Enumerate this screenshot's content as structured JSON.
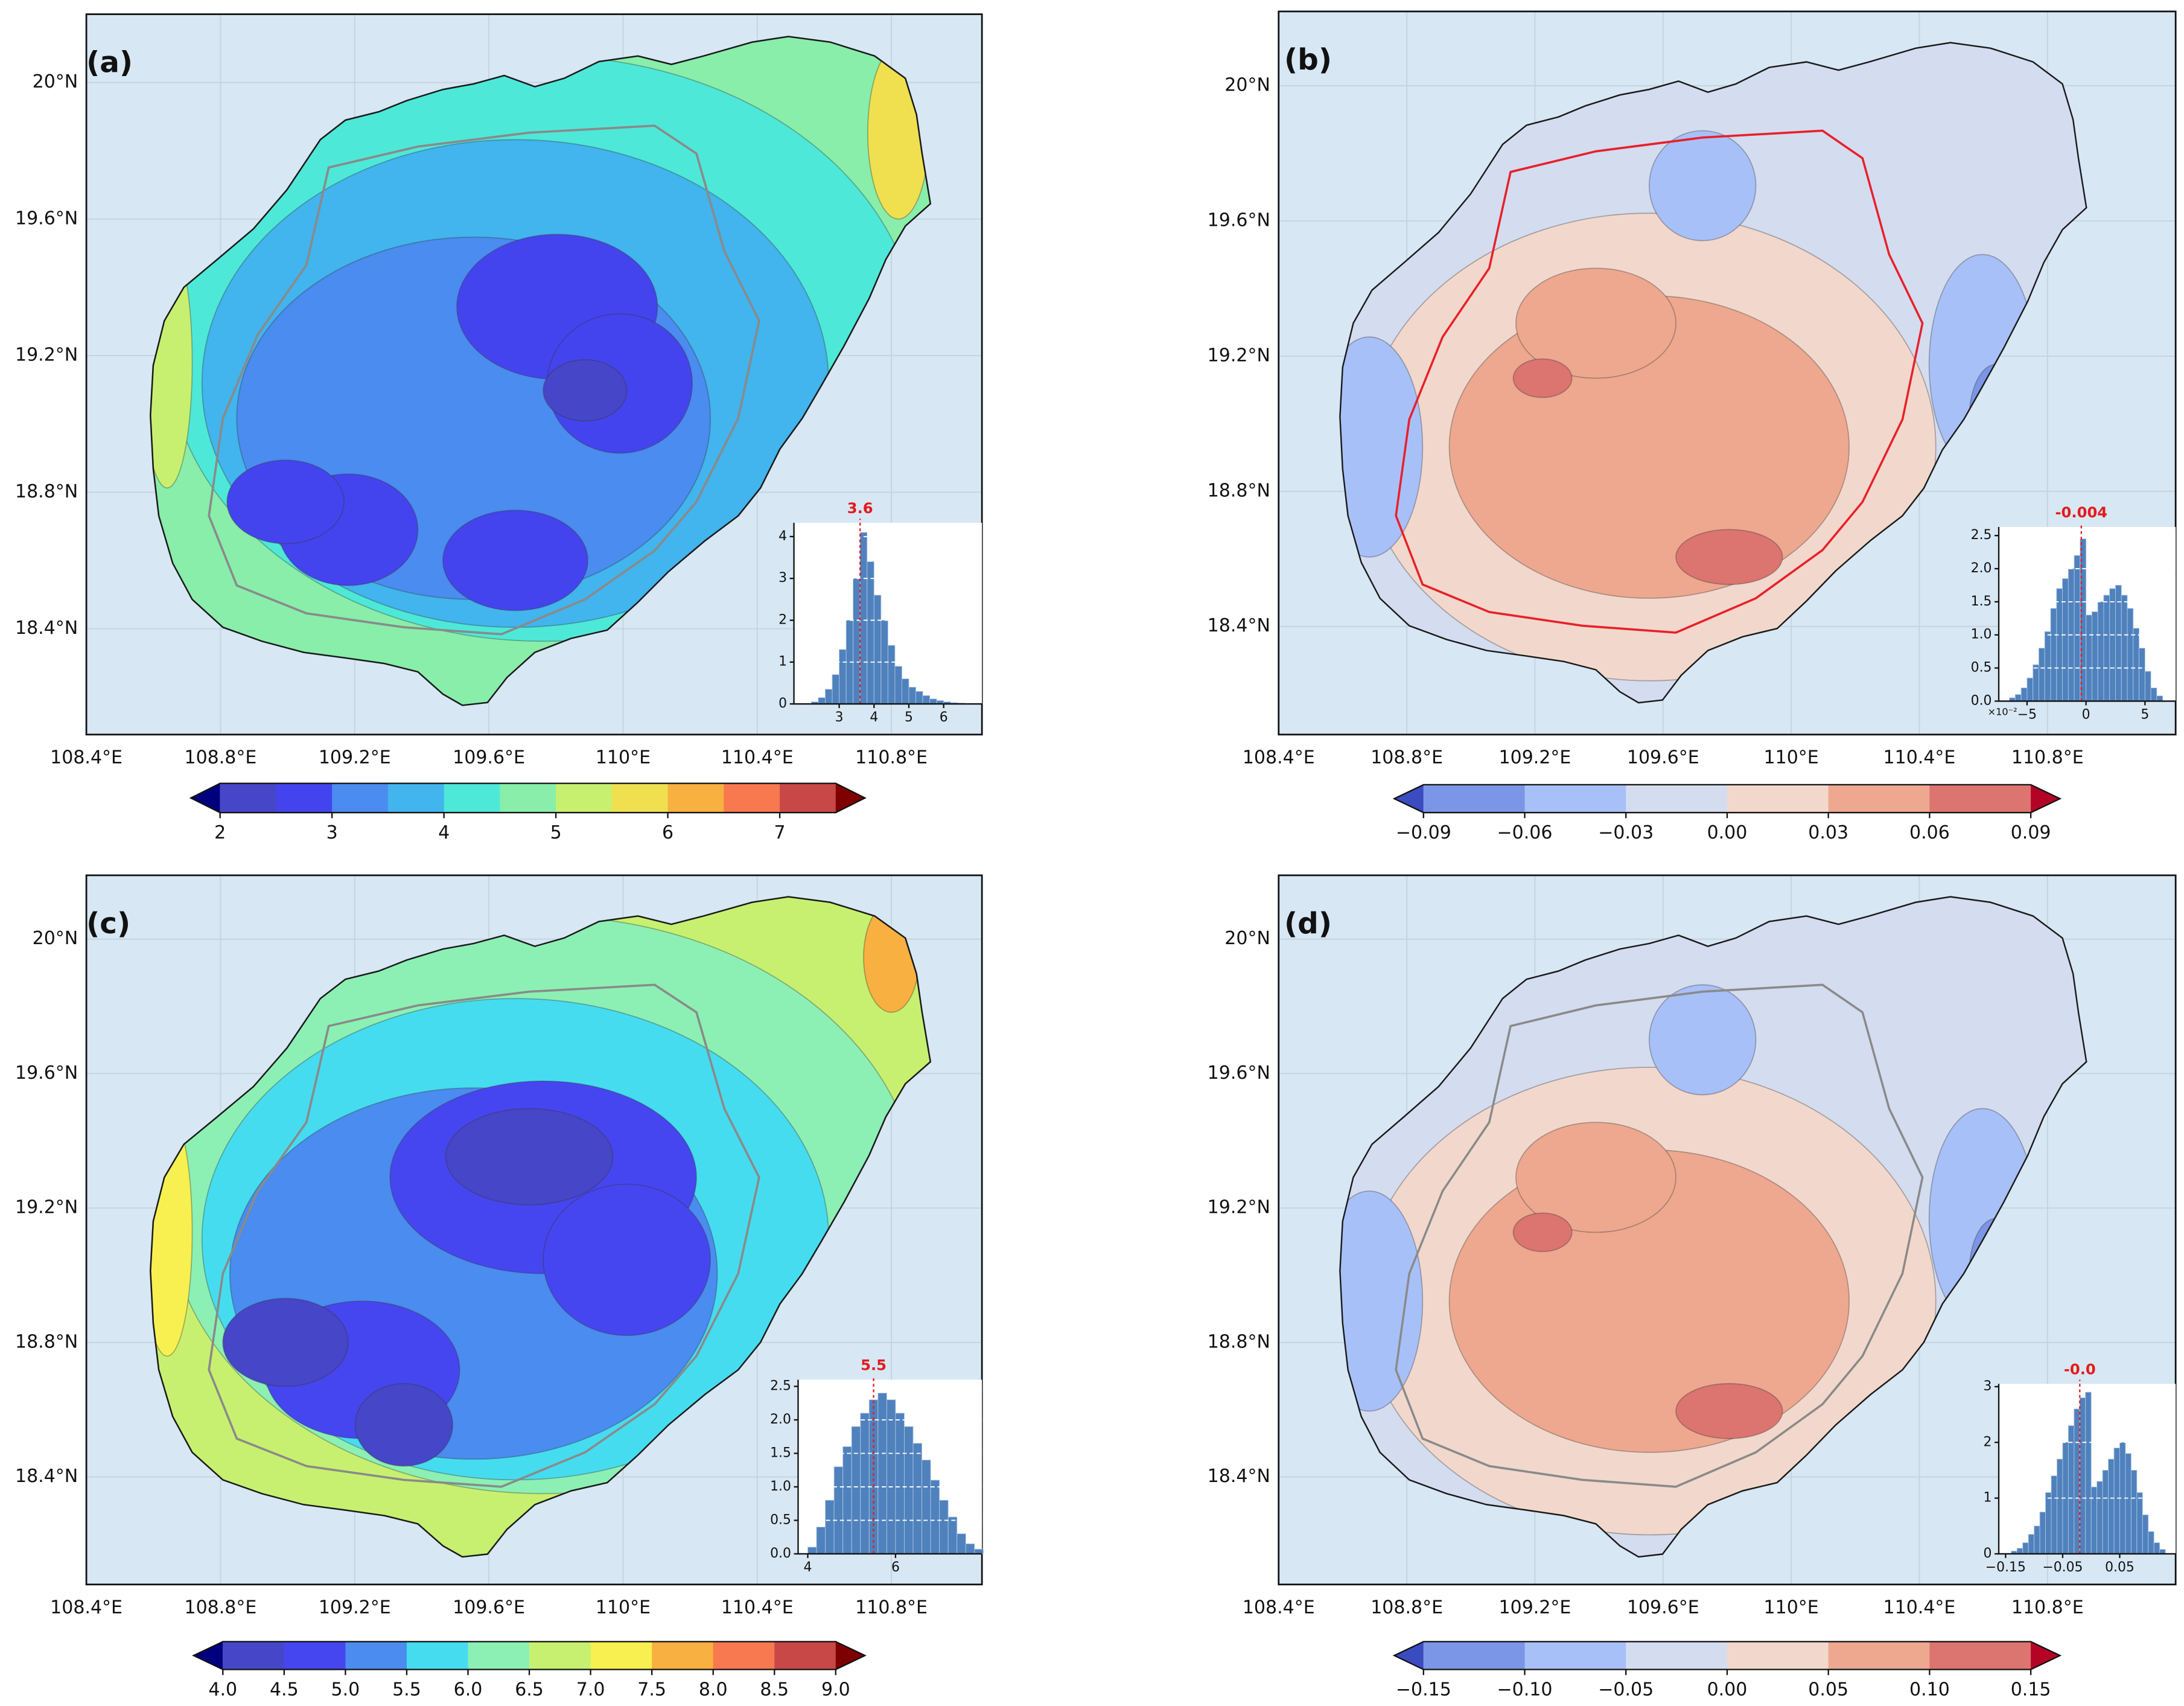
{
  "chart_data": [
    {
      "type": "map",
      "label": "(a)",
      "xlim": [
        108.4,
        111.07
      ],
      "ylim": [
        18.09,
        20.2
      ],
      "xticks": [
        {
          "value": 108.4,
          "label": "108.4°E"
        },
        {
          "value": 108.8,
          "label": "108.8°E"
        },
        {
          "value": 109.2,
          "label": "109.2°E"
        },
        {
          "value": 109.6,
          "label": "109.6°E"
        },
        {
          "value": 110,
          "label": "110°E"
        },
        {
          "value": 110.4,
          "label": "110.4°E"
        },
        {
          "value": 110.8,
          "label": "110.8°E"
        }
      ],
      "yticks": [
        {
          "value": 18.4,
          "label": "18.4°N"
        },
        {
          "value": 18.8,
          "label": "18.8°N"
        },
        {
          "value": 19.2,
          "label": "19.2°N"
        },
        {
          "value": 19.6,
          "label": "19.6°N"
        },
        {
          "value": 20,
          "label": "20°N"
        }
      ],
      "colorbar": {
        "clim": [
          2,
          7.5
        ],
        "colors": [
          "#4646c8",
          "#4444ee",
          "#4a8cf0",
          "#42b4ee",
          "#4ee8d8",
          "#88eeaa",
          "#c8f070",
          "#f0e050",
          "#f8b040",
          "#f87850",
          "#c84848"
        ],
        "extend_colors": [
          "#00007f",
          "#7f0000"
        ],
        "ticks": [
          2,
          3,
          4,
          5,
          6,
          7
        ]
      },
      "histogram": {
        "type": "histogram",
        "color": "#4f81bd",
        "mean_color": "#e41a1c",
        "bins": [
          2.2,
          2.4,
          2.6,
          2.8,
          3.0,
          3.2,
          3.4,
          3.6,
          3.8,
          4.0,
          4.2,
          4.4,
          4.6,
          4.8,
          5.0,
          5.2,
          5.4,
          5.6,
          5.8,
          6.0,
          6.2,
          6.4,
          6.6
        ],
        "values": [
          0.05,
          0.15,
          0.35,
          0.7,
          1.3,
          2.0,
          3.0,
          4.1,
          3.4,
          2.6,
          2.0,
          1.4,
          0.9,
          0.6,
          0.4,
          0.3,
          0.2,
          0.12,
          0.08,
          0.05,
          0.03,
          0.02
        ],
        "xlim": [
          1.7,
          7.1
        ],
        "ylim": [
          0,
          4.33
        ],
        "xticks": [
          3,
          4,
          5,
          6
        ],
        "yticks": [
          0,
          1,
          2,
          3,
          4
        ],
        "mean": 3.6
      }
    },
    {
      "type": "map",
      "label": "(b)",
      "xlim": [
        108.4,
        111.2
      ],
      "ylim": [
        18.08,
        20.22
      ],
      "xticks": [
        {
          "value": 108.4,
          "label": "108.4°E"
        },
        {
          "value": 108.8,
          "label": "108.8°E"
        },
        {
          "value": 109.2,
          "label": "109.2°E"
        },
        {
          "value": 109.6,
          "label": "109.6°E"
        },
        {
          "value": 110,
          "label": "110°E"
        },
        {
          "value": 110.4,
          "label": "110.4°E"
        },
        {
          "value": 110.8,
          "label": "110.8°E"
        }
      ],
      "yticks": [
        {
          "value": 18.4,
          "label": "18.4°N"
        },
        {
          "value": 18.8,
          "label": "18.8°N"
        },
        {
          "value": 19.2,
          "label": "19.2°N"
        },
        {
          "value": 19.6,
          "label": "19.6°N"
        },
        {
          "value": 20,
          "label": "20°N"
        }
      ],
      "colorbar": {
        "clim": [
          -0.09,
          0.09
        ],
        "colors": [
          "#7b96e6",
          "#a8c0f8",
          "#d4dcef",
          "#f2d8cc",
          "#eea890",
          "#dc7470"
        ],
        "extend_colors": [
          "#3a4cc0",
          "#b40426"
        ],
        "ticks": [
          {
            "value": -0.09,
            "label": "−0.09"
          },
          {
            "value": -0.06,
            "label": "−0.06"
          },
          {
            "value": -0.03,
            "label": "−0.03"
          },
          {
            "value": 0,
            "label": "0.00"
          },
          0.03,
          0.06,
          0.09
        ]
      },
      "histogram": {
        "type": "histogram",
        "color": "#4f81bd",
        "mean_color": "#e41a1c",
        "x_offset_label": "×10⁻²",
        "bins": [
          -0.065,
          -0.06,
          -0.055,
          -0.05,
          -0.045,
          -0.04,
          -0.035,
          -0.03,
          -0.025,
          -0.02,
          -0.015,
          -0.01,
          -0.005,
          0,
          0.005,
          0.01,
          0.015,
          0.02,
          0.025,
          0.03,
          0.035,
          0.04,
          0.045,
          0.05,
          0.055,
          0.06,
          0.065
        ],
        "values": [
          0.05,
          0.1,
          0.2,
          0.35,
          0.55,
          0.8,
          1.05,
          1.4,
          1.7,
          1.85,
          2.0,
          2.2,
          2.45,
          1.3,
          1.35,
          1.5,
          1.6,
          1.7,
          1.75,
          1.6,
          1.4,
          1.1,
          0.8,
          0.45,
          0.2,
          0.08
        ],
        "xlim": [
          -0.074,
          0.076
        ],
        "ylim": [
          0,
          2.63
        ],
        "xticks": [
          {
            "value": -0.05,
            "label": "−5"
          },
          {
            "value": 0,
            "label": "0"
          },
          {
            "value": 0.05,
            "label": "5"
          }
        ],
        "yticks": [
          {
            "value": 0,
            "label": "0.0"
          },
          0.5,
          {
            "value": 1,
            "label": "1.0"
          },
          1.5,
          {
            "value": 2,
            "label": "2.0"
          },
          2.5
        ],
        "mean": -0.004
      }
    },
    {
      "type": "map",
      "label": "(c)",
      "xlim": [
        108.4,
        111.07
      ],
      "ylim": [
        18.08,
        20.19
      ],
      "xticks": [
        {
          "value": 108.4,
          "label": "108.4°E"
        },
        {
          "value": 108.8,
          "label": "108.8°E"
        },
        {
          "value": 109.2,
          "label": "109.2°E"
        },
        {
          "value": 109.6,
          "label": "109.6°E"
        },
        {
          "value": 110,
          "label": "110°E"
        },
        {
          "value": 110.4,
          "label": "110.4°E"
        },
        {
          "value": 110.8,
          "label": "110.8°E"
        }
      ],
      "yticks": [
        {
          "value": 18.4,
          "label": "18.4°N"
        },
        {
          "value": 18.8,
          "label": "18.8°N"
        },
        {
          "value": 19.2,
          "label": "19.2°N"
        },
        {
          "value": 19.6,
          "label": "19.6°N"
        },
        {
          "value": 20,
          "label": "20°N"
        }
      ],
      "colorbar": {
        "clim": [
          4,
          9
        ],
        "colors": [
          "#4646c8",
          "#4646f0",
          "#4a8cf0",
          "#46dcf0",
          "#8cf0b4",
          "#c8f070",
          "#f8f050",
          "#f8b040",
          "#f87850",
          "#c84848"
        ],
        "extend_colors": [
          "#00007f",
          "#7f0000"
        ],
        "ticks": [
          {
            "value": 4,
            "label": "4.0"
          },
          4.5,
          {
            "value": 5,
            "label": "5.0"
          },
          5.5,
          {
            "value": 6,
            "label": "6.0"
          },
          6.5,
          {
            "value": 7,
            "label": "7.0"
          },
          7.5,
          {
            "value": 8,
            "label": "8.0"
          },
          8.5,
          {
            "value": 9,
            "label": "9.0"
          }
        ]
      },
      "histogram": {
        "type": "histogram",
        "color": "#4f81bd",
        "mean_color": "#e41a1c",
        "bins": [
          4.0,
          4.2,
          4.4,
          4.6,
          4.8,
          5.0,
          5.2,
          5.4,
          5.6,
          5.8,
          6.0,
          6.2,
          6.4,
          6.6,
          6.8,
          7.0,
          7.2,
          7.4,
          7.6,
          7.8,
          8.0
        ],
        "values": [
          0.1,
          0.4,
          0.8,
          1.3,
          1.6,
          1.9,
          2.1,
          2.3,
          2.4,
          2.3,
          2.1,
          1.9,
          1.65,
          1.4,
          1.1,
          0.8,
          0.55,
          0.3,
          0.15,
          0.07
        ],
        "xlim": [
          3.78,
          7.97
        ],
        "ylim": [
          0,
          2.6
        ],
        "xticks": [
          4,
          6
        ],
        "yticks": [
          {
            "value": 0,
            "label": "0.0"
          },
          0.5,
          {
            "value": 1,
            "label": "1.0"
          },
          1.5,
          {
            "value": 2,
            "label": "2.0"
          },
          2.5
        ],
        "mean": 5.5
      }
    },
    {
      "type": "map",
      "label": "(d)",
      "xlim": [
        108.4,
        111.2
      ],
      "ylim": [
        18.08,
        20.19
      ],
      "xticks": [
        {
          "value": 108.4,
          "label": "108.4°E"
        },
        {
          "value": 108.8,
          "label": "108.8°E"
        },
        {
          "value": 109.2,
          "label": "109.2°E"
        },
        {
          "value": 109.6,
          "label": "109.6°E"
        },
        {
          "value": 110,
          "label": "110°E"
        },
        {
          "value": 110.4,
          "label": "110.4°E"
        },
        {
          "value": 110.8,
          "label": "110.8°E"
        }
      ],
      "yticks": [
        {
          "value": 18.4,
          "label": "18.4°N"
        },
        {
          "value": 18.8,
          "label": "18.8°N"
        },
        {
          "value": 19.2,
          "label": "19.2°N"
        },
        {
          "value": 19.6,
          "label": "19.6°N"
        },
        {
          "value": 20,
          "label": "20°N"
        }
      ],
      "colorbar": {
        "clim": [
          -0.15,
          0.15
        ],
        "colors": [
          "#7b96e6",
          "#a8c0f8",
          "#d4dcef",
          "#f2d8cc",
          "#eea890",
          "#dc7470"
        ],
        "extend_colors": [
          "#3a4cc0",
          "#b40426"
        ],
        "ticks": [
          {
            "value": -0.15,
            "label": "−0.15"
          },
          {
            "value": -0.1,
            "label": "−0.10"
          },
          {
            "value": -0.05,
            "label": "−0.05"
          },
          {
            "value": 0,
            "label": "0.00"
          },
          0.05,
          {
            "value": 0.1,
            "label": "0.10"
          },
          0.15
        ]
      },
      "histogram": {
        "type": "histogram",
        "color": "#4f81bd",
        "mean_color": "#e41a1c",
        "bins": [
          -0.14,
          -0.13,
          -0.12,
          -0.11,
          -0.1,
          -0.09,
          -0.08,
          -0.07,
          -0.06,
          -0.05,
          -0.04,
          -0.03,
          -0.02,
          -0.01,
          0,
          0.01,
          0.02,
          0.03,
          0.04,
          0.05,
          0.06,
          0.07,
          0.08,
          0.09,
          0.1,
          0.11,
          0.12,
          0.13
        ],
        "values": [
          0.05,
          0.1,
          0.2,
          0.35,
          0.5,
          0.75,
          1.1,
          1.4,
          1.7,
          2.0,
          2.3,
          2.6,
          2.8,
          2.9,
          1.2,
          1.3,
          1.5,
          1.7,
          1.9,
          2.0,
          1.8,
          1.5,
          1.1,
          0.7,
          0.4,
          0.2,
          0.08
        ],
        "xlim": [
          -0.162,
          0.148
        ],
        "ylim": [
          0,
          3.05
        ],
        "xticks": [
          {
            "value": -0.15,
            "label": "−0.15"
          },
          {
            "value": -0.05,
            "label": "−0.05"
          },
          0.05
        ],
        "yticks": [
          0,
          1,
          2,
          3
        ],
        "mean": {
          "value": -0.02,
          "label": "-0.0"
        }
      }
    }
  ]
}
